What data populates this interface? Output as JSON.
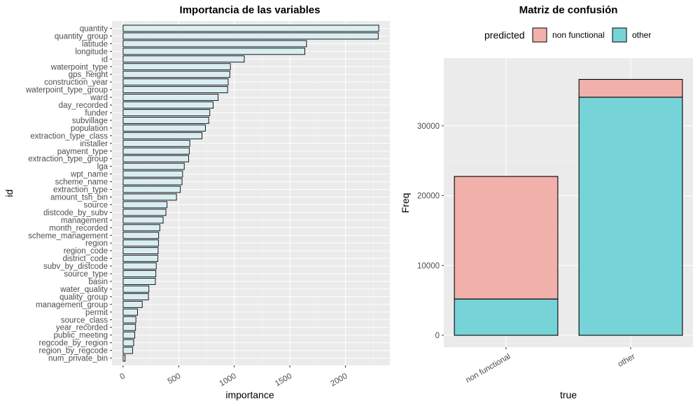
{
  "chart_data": [
    {
      "type": "bar",
      "orientation": "horizontal",
      "title": "Importancia de las variables",
      "xlabel": "importance",
      "ylabel": "id",
      "xlim": [
        0,
        2400
      ],
      "xticks": [
        0,
        500,
        1000,
        1500,
        2000
      ],
      "grid": true,
      "colors": {
        "fill": "#d9eef3",
        "stroke": "#000000",
        "panel": "#ebebeb",
        "grid": "#ffffff"
      },
      "categories": [
        "quantity",
        "quantity_group",
        "latitude",
        "longitude",
        "id",
        "waterpoint_type",
        "gps_height",
        "construction_year",
        "waterpoint_type_group",
        "ward",
        "day_recorded",
        "funder",
        "subvillage",
        "population",
        "extraction_type_class",
        "installer",
        "payment_type",
        "extraction_type_group",
        "lga",
        "wpt_name",
        "scheme_name",
        "extraction_type",
        "amount_tsh_bin",
        "source",
        "distcode_by_subv",
        "management",
        "month_recorded",
        "scheme_management",
        "region",
        "region_code",
        "district_code",
        "subv_by_distcode",
        "source_type",
        "basin",
        "water_quality",
        "quality_group",
        "management_group",
        "permit",
        "source_class",
        "year_recorded",
        "public_meeting",
        "regcode_by_region",
        "region_by_regcode",
        "num_private_bin"
      ],
      "values": [
        2300,
        2295,
        1650,
        1635,
        1090,
        965,
        960,
        945,
        940,
        855,
        810,
        780,
        770,
        740,
        710,
        600,
        595,
        590,
        550,
        535,
        530,
        515,
        480,
        395,
        385,
        360,
        330,
        320,
        318,
        315,
        312,
        298,
        295,
        290,
        232,
        228,
        172,
        130,
        115,
        112,
        105,
        95,
        85,
        18
      ]
    },
    {
      "type": "bar",
      "stacked": true,
      "title": "Matriz de confusión",
      "xlabel": "true",
      "ylabel": "Freq",
      "ylim": [
        0,
        38000
      ],
      "yticks": [
        0,
        10000,
        20000,
        30000
      ],
      "ytick_labels": [
        "0",
        "10000",
        "20000",
        "30000"
      ],
      "grid": true,
      "legend": {
        "title": "predicted",
        "position": "top"
      },
      "categories": [
        "non functional",
        "other"
      ],
      "series": [
        {
          "name": "other",
          "color": "#76d4d8",
          "values": [
            5200,
            34100
          ]
        },
        {
          "name": "non functional",
          "color": "#f2b0ab",
          "values": [
            17550,
            2550
          ]
        }
      ],
      "colors": {
        "panel": "#ebebeb",
        "grid": "#ffffff",
        "stroke": "#000000"
      }
    }
  ]
}
